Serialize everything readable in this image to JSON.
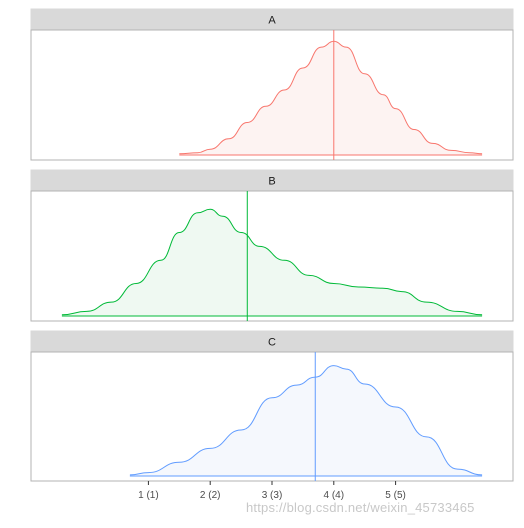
{
  "chart_data": {
    "type": "density",
    "facets": [
      "A",
      "B",
      "C"
    ],
    "x_ticks": [
      1,
      2,
      3,
      4,
      5
    ],
    "x_tick_labels": [
      "1 (1)",
      "2 (2)",
      "3 (3)",
      "4 (4)",
      "5 (5)"
    ],
    "xlim": [
      -0.9,
      6.9
    ],
    "series": [
      {
        "name": "A",
        "color": "#F8766D",
        "fill": "#FDF3F2",
        "mean": 4.0,
        "ymax": 1.0,
        "density": [
          [
            1.5,
            0.01
          ],
          [
            1.8,
            0.02
          ],
          [
            2.0,
            0.05
          ],
          [
            2.3,
            0.14
          ],
          [
            2.6,
            0.28
          ],
          [
            2.9,
            0.42
          ],
          [
            3.2,
            0.56
          ],
          [
            3.5,
            0.75
          ],
          [
            3.8,
            0.93
          ],
          [
            4.0,
            0.98
          ],
          [
            4.2,
            0.93
          ],
          [
            4.5,
            0.7
          ],
          [
            4.8,
            0.52
          ],
          [
            5.0,
            0.4
          ],
          [
            5.3,
            0.22
          ],
          [
            5.6,
            0.1
          ],
          [
            5.9,
            0.04
          ],
          [
            6.2,
            0.02
          ],
          [
            6.4,
            0.01
          ]
        ]
      },
      {
        "name": "B",
        "color": "#00BA38",
        "fill": "#EFF9F2",
        "mean": 2.6,
        "ymax": 1.0,
        "density": [
          [
            -0.4,
            0.01
          ],
          [
            0.0,
            0.04
          ],
          [
            0.4,
            0.12
          ],
          [
            0.8,
            0.28
          ],
          [
            1.2,
            0.48
          ],
          [
            1.5,
            0.72
          ],
          [
            1.8,
            0.89
          ],
          [
            2.0,
            0.92
          ],
          [
            2.2,
            0.86
          ],
          [
            2.5,
            0.72
          ],
          [
            2.8,
            0.6
          ],
          [
            3.2,
            0.48
          ],
          [
            3.6,
            0.35
          ],
          [
            4.0,
            0.28
          ],
          [
            4.4,
            0.25
          ],
          [
            4.8,
            0.24
          ],
          [
            5.1,
            0.21
          ],
          [
            5.5,
            0.12
          ],
          [
            6.0,
            0.04
          ],
          [
            6.4,
            0.01
          ]
        ]
      },
      {
        "name": "C",
        "color": "#619CFF",
        "fill": "#F5F8FD",
        "mean": 3.7,
        "ymax": 1.0,
        "density": [
          [
            0.7,
            0.01
          ],
          [
            1.0,
            0.03
          ],
          [
            1.5,
            0.12
          ],
          [
            2.0,
            0.24
          ],
          [
            2.5,
            0.4
          ],
          [
            3.0,
            0.68
          ],
          [
            3.4,
            0.79
          ],
          [
            3.7,
            0.86
          ],
          [
            4.0,
            0.96
          ],
          [
            4.2,
            0.93
          ],
          [
            4.5,
            0.8
          ],
          [
            5.0,
            0.6
          ],
          [
            5.5,
            0.34
          ],
          [
            6.0,
            0.06
          ],
          [
            6.4,
            0.01
          ]
        ]
      }
    ],
    "grid": false,
    "legend": "none"
  },
  "watermark": "https://blog.csdn.net/weixin_45733465"
}
